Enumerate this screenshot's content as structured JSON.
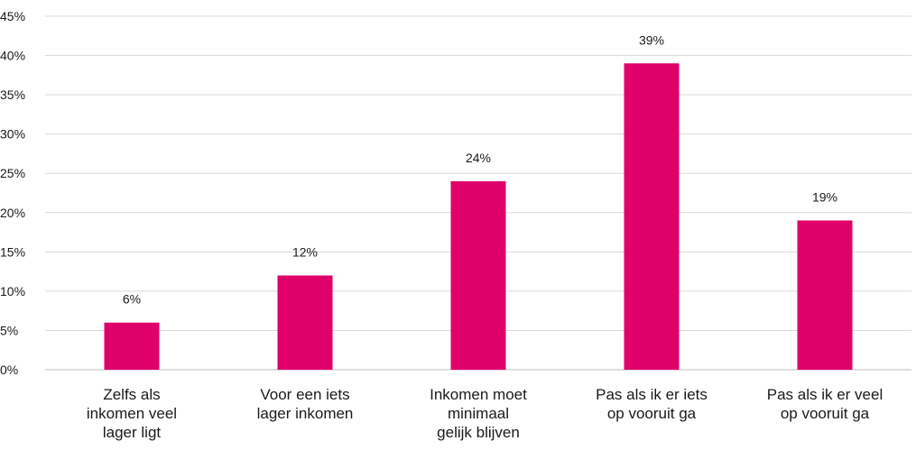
{
  "chart_data": {
    "type": "bar",
    "categories": [
      [
        "Zelfs als",
        "inkomen veel",
        "lager ligt"
      ],
      [
        "Voor een iets",
        "lager inkomen"
      ],
      [
        "Inkomen moet",
        "minimaal",
        "gelijk blijven"
      ],
      [
        "Pas als ik er iets",
        "op vooruit ga"
      ],
      [
        "Pas als ik er veel",
        "op vooruit ga"
      ]
    ],
    "values": [
      6,
      12,
      24,
      39,
      19
    ],
    "data_labels": [
      "6%",
      "12%",
      "24%",
      "39%",
      "19%"
    ],
    "y_ticks": [
      "0%",
      "5%",
      "10%",
      "15%",
      "20%",
      "25%",
      "30%",
      "35%",
      "40%",
      "45%"
    ],
    "ylim": [
      0,
      45
    ],
    "grid": true,
    "legend": "none",
    "bar_color": "#e0006a"
  }
}
